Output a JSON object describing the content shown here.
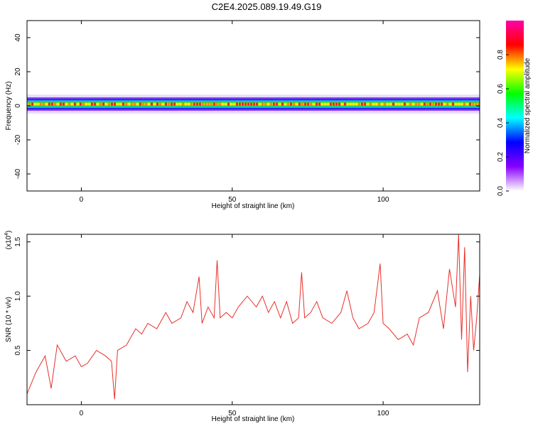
{
  "title": "C2E4.2025.089.19.49.G19",
  "chart_data": [
    {
      "type": "heatmap",
      "xlabel": "Height of straight line (km)",
      "ylabel": "Frequency (Hz)",
      "xlim": [
        -18,
        132
      ],
      "ylim": [
        -50,
        50
      ],
      "xticks": [
        0,
        50,
        100
      ],
      "yticks": [
        -40,
        -20,
        0,
        20,
        40
      ],
      "grid": false,
      "band_center_hz": 1,
      "band_halfwidth_hz": 4,
      "colorbar": {
        "label": "Normalized spectral amplitude",
        "range": [
          0,
          1
        ],
        "ticks": [
          "0.0",
          "0.2",
          "0.4",
          "0.6",
          "0.8"
        ],
        "colors": [
          "#ffffff",
          "#8800ff",
          "#0000ff",
          "#00ffff",
          "#00ff00",
          "#ffff00",
          "#ff0000",
          "#ff00aa"
        ]
      }
    },
    {
      "type": "line",
      "xlabel": "Height of straight line (km)",
      "ylabel": "SNR (10 * v/v)",
      "scale_label": "(x10",
      "scale_exp": "4",
      "scale_close": ")",
      "xlim": [
        -18,
        132
      ],
      "ylim": [
        0.0,
        1.57
      ],
      "xticks": [
        0,
        50,
        100
      ],
      "yticks": [
        "0.5",
        "1.0",
        "1.5"
      ],
      "line_color": "#e8302a",
      "series": [
        {
          "x": [
            -18,
            -15,
            -12,
            -10,
            -8,
            -5,
            -2,
            0,
            2,
            5,
            8,
            10,
            11,
            12,
            15,
            18,
            20,
            22,
            25,
            28,
            30,
            33,
            35,
            37,
            39,
            40,
            42,
            44,
            45,
            46,
            48,
            50,
            52,
            55,
            58,
            60,
            62,
            64,
            66,
            68,
            70,
            72,
            73,
            74,
            76,
            78,
            80,
            83,
            86,
            88,
            90,
            92,
            95,
            97,
            99,
            100,
            102,
            105,
            108,
            110,
            112,
            115,
            118,
            120,
            122,
            124,
            125,
            126,
            127,
            128,
            129,
            130,
            131,
            132
          ],
          "values": [
            0.1,
            0.3,
            0.45,
            0.15,
            0.55,
            0.4,
            0.45,
            0.35,
            0.38,
            0.5,
            0.45,
            0.4,
            0.05,
            0.5,
            0.55,
            0.7,
            0.65,
            0.75,
            0.7,
            0.85,
            0.75,
            0.8,
            0.95,
            0.85,
            1.18,
            0.75,
            0.9,
            0.8,
            1.33,
            0.8,
            0.85,
            0.8,
            0.9,
            1.0,
            0.9,
            1.0,
            0.85,
            0.95,
            0.8,
            0.95,
            0.75,
            0.8,
            1.22,
            0.8,
            0.85,
            0.95,
            0.8,
            0.75,
            0.85,
            1.05,
            0.8,
            0.7,
            0.75,
            0.85,
            1.3,
            0.75,
            0.7,
            0.6,
            0.65,
            0.55,
            0.8,
            0.85,
            1.05,
            0.7,
            1.25,
            0.9,
            1.57,
            0.6,
            1.45,
            0.3,
            1.0,
            0.5,
            0.8,
            1.2
          ]
        }
      ]
    }
  ]
}
